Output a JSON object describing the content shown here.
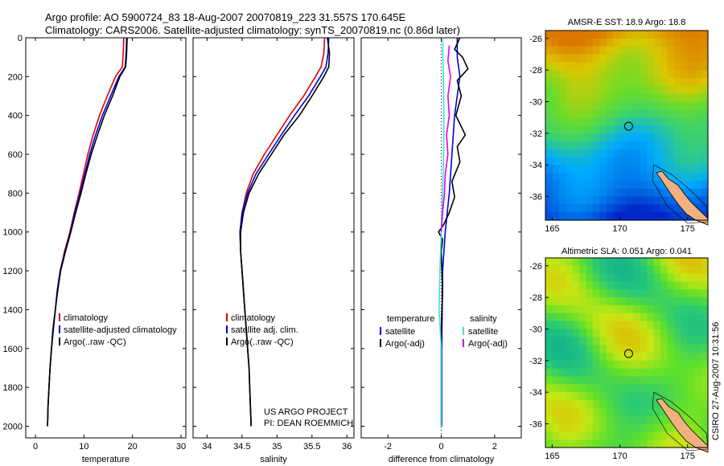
{
  "header": {
    "line1": "Argo profile: AO 5900724_83 18-Aug-2007 20070819_223 31.557S 170.645E",
    "line2": "Climatology: CARS2006. Satellite-adjusted climatology: synTS_20070819.nc (0.86d later)"
  },
  "credit": {
    "line1": "US ARGO PROJECT",
    "line2": "PI: DEAN ROEMMICH"
  },
  "stamp": "CSIRO 27-Aug-2007 10:31:56",
  "colors": {
    "climatology": "#e00000",
    "satellite": "#0000e0",
    "argo": "#000000",
    "sat_salinity": "#40e0e0",
    "argo_salinity": "#e000e0"
  },
  "chart_data": [
    {
      "type": "line",
      "id": "temperature-profile",
      "xlabel": "temperature",
      "ylabel": "",
      "xlim": [
        -2,
        31
      ],
      "ylim": [
        2060,
        0
      ],
      "xticks": [
        "0",
        "10",
        "20",
        "30"
      ],
      "xtick_values": [
        0,
        10,
        20,
        30
      ],
      "yticks": [
        "0",
        "200",
        "400",
        "600",
        "800",
        "1000",
        "1200",
        "1400",
        "1600",
        "1800",
        "2000"
      ],
      "ytick_values": [
        0,
        200,
        400,
        600,
        800,
        1000,
        1200,
        1400,
        1600,
        1800,
        2000
      ],
      "legend": [
        "climatology",
        "satellite-adjusted climatology",
        "Argo(..raw -QC)"
      ],
      "series": [
        {
          "name": "climatology",
          "points": [
            [
              18.2,
              0
            ],
            [
              18.1,
              80
            ],
            [
              17.9,
              150
            ],
            [
              16.5,
              200
            ],
            [
              14.8,
              300
            ],
            [
              13.2,
              400
            ],
            [
              11.9,
              500
            ],
            [
              10.8,
              600
            ],
            [
              9.9,
              700
            ],
            [
              9.0,
              800
            ],
            [
              8.0,
              900
            ],
            [
              7.1,
              1000
            ],
            [
              6.0,
              1100
            ],
            [
              5.1,
              1200
            ],
            [
              4.5,
              1300
            ],
            [
              4.1,
              1400
            ],
            [
              3.6,
              1500
            ],
            [
              3.3,
              1600
            ],
            [
              3.0,
              1700
            ],
            [
              2.8,
              1800
            ],
            [
              2.6,
              1900
            ],
            [
              2.5,
              2000
            ]
          ]
        },
        {
          "name": "satellite-adjusted climatology",
          "points": [
            [
              18.8,
              0
            ],
            [
              18.7,
              80
            ],
            [
              18.5,
              150
            ],
            [
              17.2,
              200
            ],
            [
              15.5,
              300
            ],
            [
              13.8,
              400
            ],
            [
              12.4,
              500
            ],
            [
              11.2,
              600
            ],
            [
              10.2,
              700
            ],
            [
              9.2,
              800
            ],
            [
              8.1,
              900
            ],
            [
              7.2,
              1000
            ],
            [
              6.1,
              1100
            ],
            [
              5.1,
              1200
            ],
            [
              4.5,
              1300
            ],
            [
              4.1,
              1400
            ],
            [
              3.6,
              1500
            ],
            [
              3.3,
              1600
            ],
            [
              3.0,
              1700
            ],
            [
              2.8,
              1800
            ],
            [
              2.6,
              1900
            ],
            [
              2.5,
              2000
            ]
          ]
        },
        {
          "name": "Argo(..raw -QC)",
          "points": [
            [
              18.9,
              0
            ],
            [
              18.8,
              80
            ],
            [
              18.6,
              150
            ],
            [
              17.4,
              200
            ],
            [
              15.9,
              300
            ],
            [
              14.2,
              400
            ],
            [
              12.8,
              500
            ],
            [
              11.5,
              600
            ],
            [
              10.4,
              700
            ],
            [
              9.4,
              800
            ],
            [
              8.3,
              900
            ],
            [
              7.3,
              1000
            ],
            [
              6.2,
              1100
            ],
            [
              5.2,
              1200
            ],
            [
              4.6,
              1300
            ],
            [
              4.1,
              1400
            ],
            [
              3.7,
              1500
            ],
            [
              3.3,
              1600
            ],
            [
              3.0,
              1700
            ],
            [
              2.8,
              1800
            ],
            [
              2.6,
              1900
            ],
            [
              2.5,
              2000
            ]
          ]
        }
      ]
    },
    {
      "type": "line",
      "id": "salinity-profile",
      "xlabel": "salinity",
      "xlim": [
        33.8,
        36.1
      ],
      "ylim": [
        2060,
        0
      ],
      "xticks": [
        "34",
        "34.5",
        "35",
        "35.5",
        "36"
      ],
      "xtick_values": [
        34,
        34.5,
        35,
        35.5,
        36
      ],
      "legend": [
        "climatology",
        "satellite adj. clim.",
        "Argo(..raw -QC)"
      ],
      "series": [
        {
          "name": "climatology",
          "points": [
            [
              35.68,
              0
            ],
            [
              35.67,
              80
            ],
            [
              35.63,
              150
            ],
            [
              35.55,
              200
            ],
            [
              35.38,
              300
            ],
            [
              35.18,
              400
            ],
            [
              35.0,
              500
            ],
            [
              34.82,
              600
            ],
            [
              34.66,
              700
            ],
            [
              34.56,
              800
            ],
            [
              34.5,
              900
            ],
            [
              34.47,
              1000
            ],
            [
              34.48,
              1100
            ],
            [
              34.5,
              1200
            ],
            [
              34.52,
              1300
            ],
            [
              34.54,
              1400
            ],
            [
              34.56,
              1500
            ],
            [
              34.58,
              1600
            ],
            [
              34.6,
              1700
            ],
            [
              34.61,
              1800
            ],
            [
              34.62,
              1900
            ],
            [
              34.63,
              2000
            ]
          ]
        },
        {
          "name": "satellite adj. clim.",
          "points": [
            [
              35.74,
              0
            ],
            [
              35.73,
              80
            ],
            [
              35.7,
              150
            ],
            [
              35.62,
              200
            ],
            [
              35.45,
              300
            ],
            [
              35.25,
              400
            ],
            [
              35.06,
              500
            ],
            [
              34.88,
              600
            ],
            [
              34.7,
              700
            ],
            [
              34.58,
              800
            ],
            [
              34.5,
              900
            ],
            [
              34.47,
              1000
            ],
            [
              34.48,
              1100
            ],
            [
              34.5,
              1200
            ],
            [
              34.52,
              1300
            ],
            [
              34.54,
              1400
            ],
            [
              34.56,
              1500
            ],
            [
              34.58,
              1600
            ],
            [
              34.6,
              1700
            ],
            [
              34.61,
              1800
            ],
            [
              34.62,
              1900
            ],
            [
              34.63,
              2000
            ]
          ]
        },
        {
          "name": "Argo(..raw -QC)",
          "points": [
            [
              35.72,
              0
            ],
            [
              35.75,
              80
            ],
            [
              35.74,
              150
            ],
            [
              35.67,
              200
            ],
            [
              35.5,
              300
            ],
            [
              35.32,
              400
            ],
            [
              35.1,
              500
            ],
            [
              34.92,
              600
            ],
            [
              34.74,
              700
            ],
            [
              34.6,
              800
            ],
            [
              34.52,
              900
            ],
            [
              34.48,
              1000
            ],
            [
              34.48,
              1100
            ],
            [
              34.5,
              1200
            ],
            [
              34.52,
              1300
            ],
            [
              34.54,
              1400
            ],
            [
              34.56,
              1500
            ],
            [
              34.58,
              1600
            ],
            [
              34.6,
              1700
            ],
            [
              34.61,
              1800
            ],
            [
              34.62,
              1900
            ],
            [
              34.63,
              2000
            ]
          ]
        }
      ]
    },
    {
      "type": "line",
      "id": "difference-profile",
      "xlabel": "difference from climatology",
      "xlim": [
        -3,
        3
      ],
      "ylim": [
        2060,
        0
      ],
      "xticks": [
        "-2",
        "0",
        "2"
      ],
      "xtick_values": [
        -2,
        0,
        2
      ],
      "zero_line": true,
      "legend_temperature": {
        "title": "temperature",
        "items": [
          "satellite",
          "Argo(-adj)"
        ]
      },
      "legend_salinity": {
        "title": "salinity",
        "items": [
          "satellite",
          "Argo(-adj)"
        ]
      },
      "series": [
        {
          "name": "temperature satellite",
          "points": [
            [
              0.6,
              0
            ],
            [
              0.6,
              100
            ],
            [
              0.7,
              200
            ],
            [
              0.6,
              300
            ],
            [
              0.5,
              400
            ],
            [
              0.4,
              600
            ],
            [
              0.3,
              800
            ],
            [
              0.15,
              1000
            ],
            [
              0.05,
              1200
            ],
            [
              0.02,
              1600
            ],
            [
              0.02,
              2000
            ]
          ]
        },
        {
          "name": "temperature Argo(-adj)",
          "points": [
            [
              0.7,
              0
            ],
            [
              0.5,
              60
            ],
            [
              0.8,
              100
            ],
            [
              1.0,
              160
            ],
            [
              0.6,
              220
            ],
            [
              0.75,
              300
            ],
            [
              0.55,
              400
            ],
            [
              0.9,
              500
            ],
            [
              0.6,
              560
            ],
            [
              0.7,
              640
            ],
            [
              0.4,
              740
            ],
            [
              0.5,
              820
            ],
            [
              0.3,
              900
            ],
            [
              0.1,
              960
            ],
            [
              -0.1,
              1000
            ],
            [
              0.05,
              1040
            ],
            [
              0.0,
              1100
            ],
            [
              0.05,
              1300
            ],
            [
              0.0,
              1500
            ],
            [
              0.0,
              2000
            ]
          ]
        },
        {
          "name": "salinity satellite",
          "points": [
            [
              0.06,
              0
            ],
            [
              0.06,
              100
            ],
            [
              0.08,
              200
            ],
            [
              0.1,
              400
            ],
            [
              0.09,
              600
            ],
            [
              0.05,
              800
            ],
            [
              0.0,
              1000
            ],
            [
              -0.05,
              1200
            ],
            [
              -0.08,
              1400
            ],
            [
              0.0,
              1600
            ],
            [
              0.0,
              2000
            ]
          ]
        },
        {
          "name": "salinity Argo(-adj)",
          "points": [
            [
              0.3,
              40
            ],
            [
              0.25,
              120
            ],
            [
              0.35,
              200
            ],
            [
              0.25,
              300
            ],
            [
              0.3,
              400
            ],
            [
              0.2,
              500
            ],
            [
              0.25,
              600
            ],
            [
              0.15,
              700
            ],
            [
              0.12,
              800
            ],
            [
              0.05,
              900
            ],
            [
              0.0,
              1000
            ]
          ]
        }
      ]
    },
    {
      "type": "heatmap",
      "id": "amsr-sst-map",
      "title": "AMSR-E SST: 18.9 Argo: 18.8",
      "xlim": [
        164.5,
        176.5
      ],
      "ylim": [
        -37.5,
        -25.5
      ],
      "xticks": [
        "165",
        "170",
        "175"
      ],
      "xtick_values": [
        165,
        170,
        175
      ],
      "yticks": [
        "-26",
        "-28",
        "-30",
        "-32",
        "-34",
        "-36"
      ],
      "ytick_values": [
        -26,
        -28,
        -30,
        -32,
        -34,
        -36
      ],
      "marker": {
        "lon": 170.645,
        "lat": -31.557
      }
    },
    {
      "type": "heatmap",
      "id": "altimetric-sla-map",
      "title": "Altimetric SLA: 0.051 Argo: 0.041",
      "xlim": [
        164.5,
        176.5
      ],
      "ylim": [
        -37.5,
        -25.5
      ],
      "xticks": [
        "165",
        "170",
        "175"
      ],
      "xtick_values": [
        165,
        170,
        175
      ],
      "yticks": [
        "-26",
        "-28",
        "-30",
        "-32",
        "-34",
        "-36"
      ],
      "ytick_values": [
        -26,
        -28,
        -30,
        -32,
        -34,
        -36
      ],
      "marker": {
        "lon": 170.645,
        "lat": -31.557
      }
    }
  ]
}
